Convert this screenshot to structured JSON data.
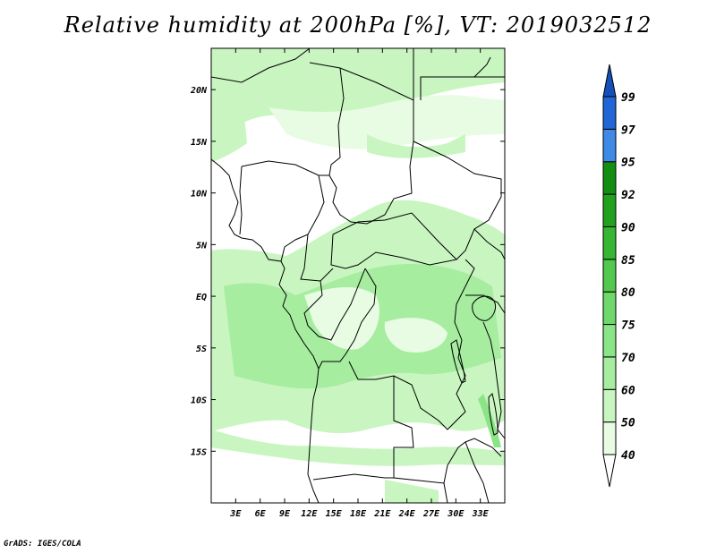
{
  "title": "Relative humidity at 200hPa [%], VT: 2019032512",
  "credit": "GrADS: IGES/COLA",
  "map": {
    "lon_range": [
      0,
      36
    ],
    "lat_range": [
      -20,
      24
    ],
    "lon_ticks": [
      {
        "v": 3,
        "label": "3E"
      },
      {
        "v": 6,
        "label": "6E"
      },
      {
        "v": 9,
        "label": "9E"
      },
      {
        "v": 12,
        "label": "12E"
      },
      {
        "v": 15,
        "label": "15E"
      },
      {
        "v": 18,
        "label": "18E"
      },
      {
        "v": 21,
        "label": "21E"
      },
      {
        "v": 24,
        "label": "24E"
      },
      {
        "v": 27,
        "label": "27E"
      },
      {
        "v": 30,
        "label": "30E"
      },
      {
        "v": 33,
        "label": "33E"
      }
    ],
    "lat_ticks": [
      {
        "v": 20,
        "label": "20N"
      },
      {
        "v": 15,
        "label": "15N"
      },
      {
        "v": 10,
        "label": "10N"
      },
      {
        "v": 5,
        "label": "5N"
      },
      {
        "v": 0,
        "label": "EQ"
      },
      {
        "v": -5,
        "label": "5S"
      },
      {
        "v": -10,
        "label": "10S"
      },
      {
        "v": -15,
        "label": "15S"
      }
    ]
  },
  "colorbar": {
    "levels": [
      "40",
      "50",
      "60",
      "70",
      "75",
      "80",
      "85",
      "90",
      "92",
      "95",
      "97",
      "99"
    ],
    "colors": [
      "#ffffff",
      "#e8fbe3",
      "#c8f5c0",
      "#a6eda0",
      "#8ae586",
      "#6ed86a",
      "#52c94e",
      "#36b632",
      "#22a11e",
      "#148e10",
      "#3e8ae6",
      "#2066d6",
      "#1450b8"
    ]
  }
}
